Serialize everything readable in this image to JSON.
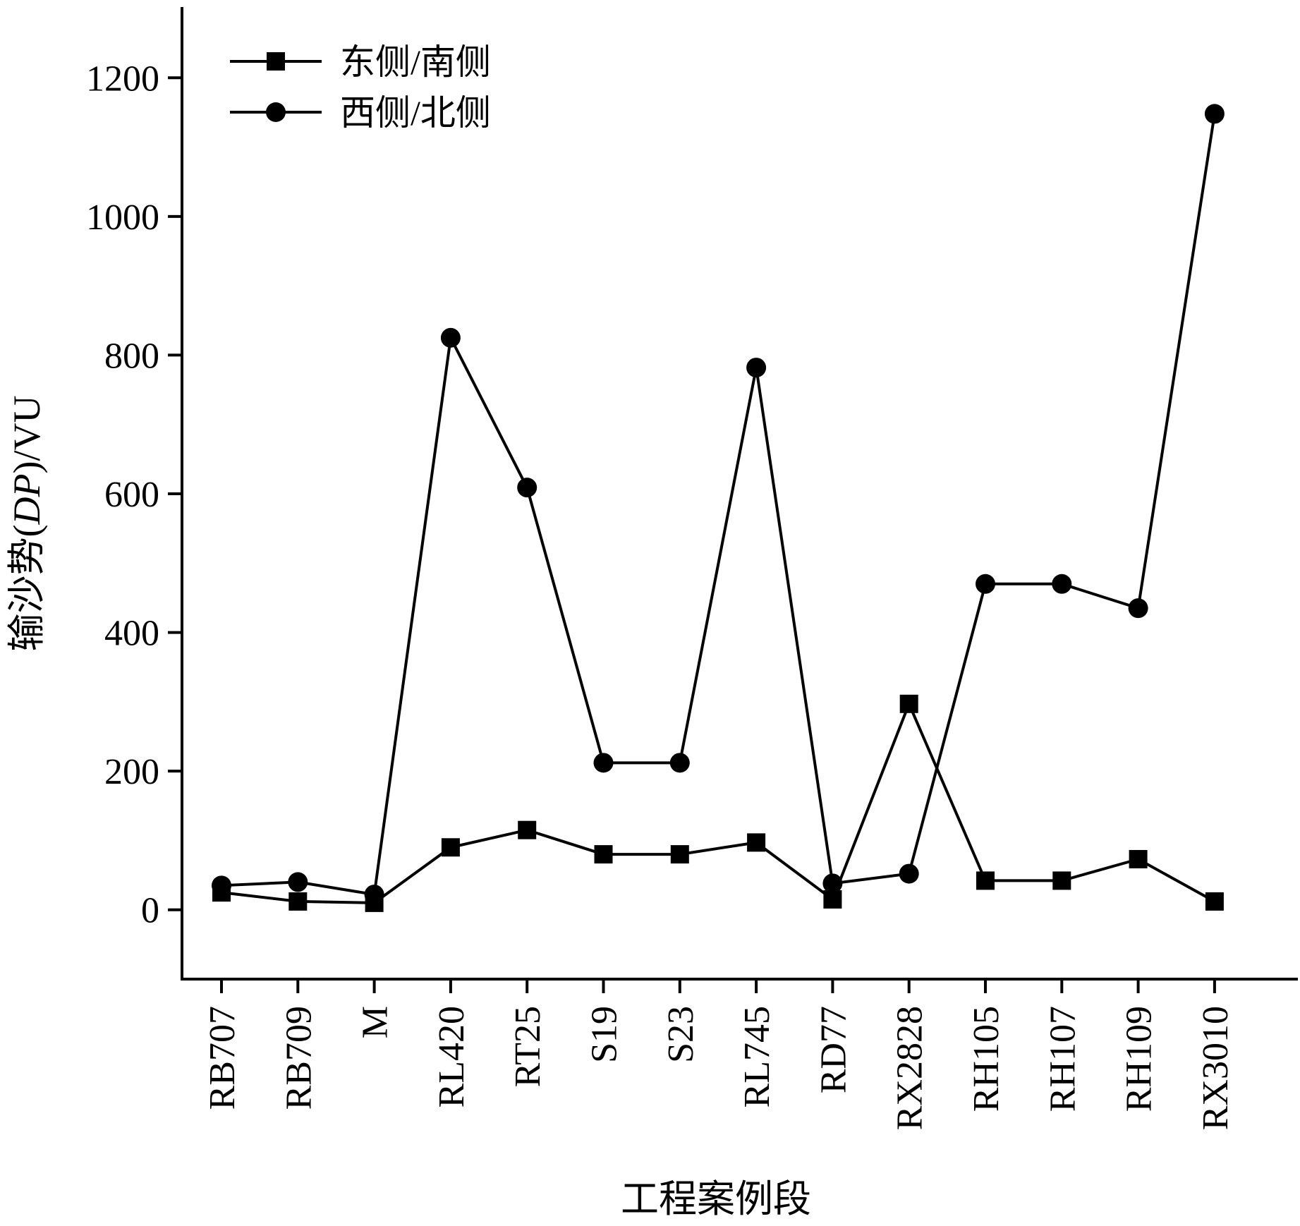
{
  "chart_data": {
    "type": "line",
    "title": "",
    "xlabel": "工程案例段",
    "ylabel_prefix": "输沙势(",
    "ylabel_italic": "DP",
    "ylabel_suffix": ")/VU",
    "ylim": [
      -100,
      1300
    ],
    "yticks": [
      0,
      200,
      400,
      600,
      800,
      1000,
      1200
    ],
    "ytick_labels": [
      "0",
      "200",
      "400",
      "600",
      "800",
      "1000",
      "1200"
    ],
    "categories": [
      "RB707",
      "RB709",
      "M",
      "RL420",
      "RT25",
      "S19",
      "S23",
      "RL745",
      "RD77",
      "RX2828",
      "RH105",
      "RH107",
      "RH109",
      "RX3010"
    ],
    "grid": false,
    "legend_position": "top-left",
    "series": [
      {
        "name": "东侧/南侧",
        "marker": "square",
        "color": "#000000",
        "values": [
          25,
          12,
          10,
          90,
          115,
          80,
          80,
          97,
          15,
          297,
          42,
          42,
          73,
          12
        ]
      },
      {
        "name": "西侧/北侧",
        "marker": "circle",
        "color": "#000000",
        "values": [
          35,
          40,
          22,
          825,
          609,
          212,
          212,
          782,
          38,
          52,
          470,
          470,
          435,
          1148
        ]
      }
    ]
  }
}
